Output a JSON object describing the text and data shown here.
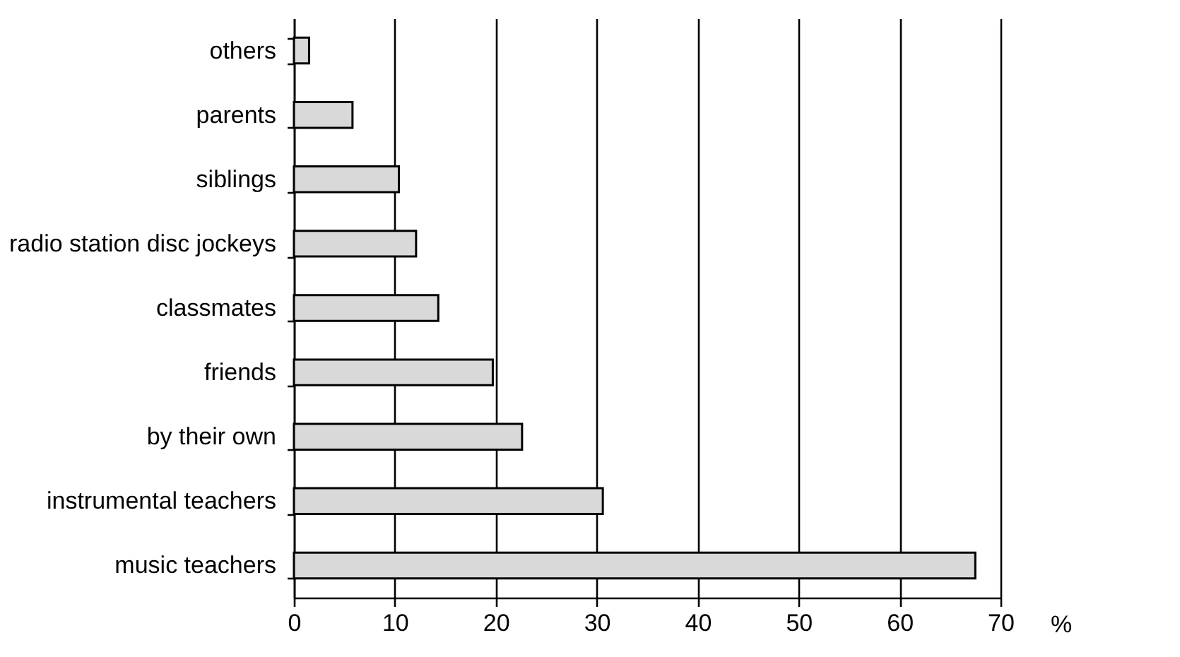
{
  "chart_data": {
    "type": "bar",
    "orientation": "horizontal",
    "xlabel": "%",
    "categories": [
      "others",
      "parents",
      "siblings",
      "radio station disc jockeys",
      "classmates",
      "friends",
      "by their own",
      "instrumental teachers",
      "music teachers"
    ],
    "values": [
      1.5,
      5.8,
      10.4,
      12.1,
      14.3,
      19.7,
      22.6,
      30.6,
      67.5
    ],
    "color": "#d9d9d9",
    "xlim": [
      0,
      70
    ],
    "xticks": [
      0,
      10,
      20,
      30,
      40,
      50,
      60,
      70
    ],
    "grid": "x"
  }
}
